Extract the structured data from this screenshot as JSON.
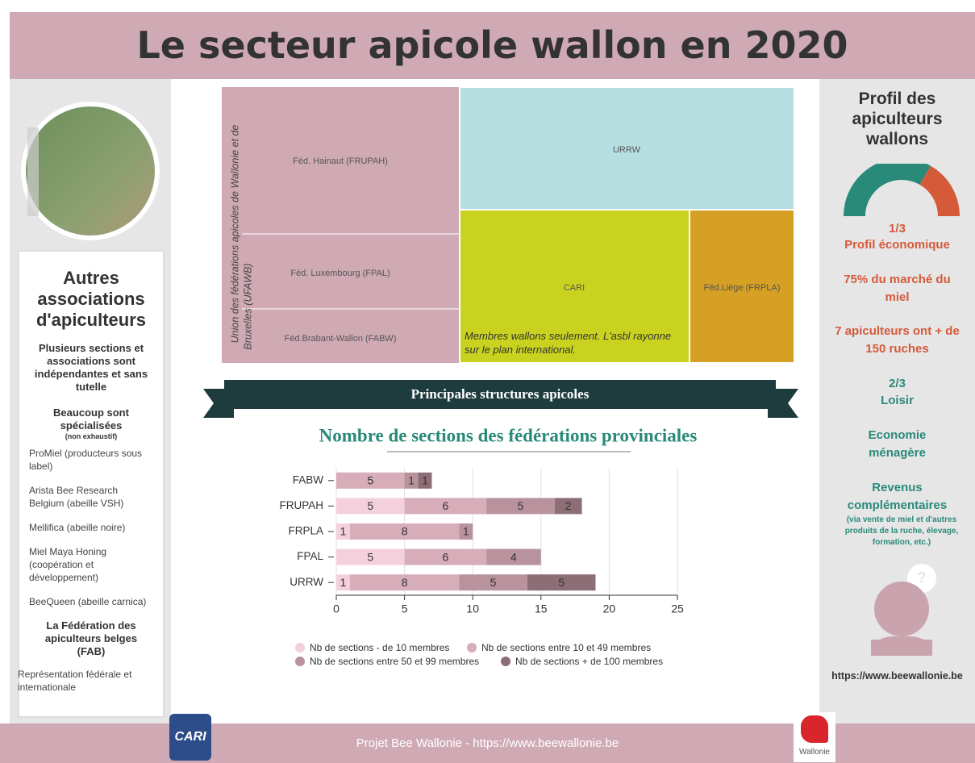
{
  "header": {
    "title": "Le secteur apicole wallon en 2020"
  },
  "left_panel": {
    "heading": "Autres associations d'apiculteurs",
    "intro": "Plusieurs sections et associations sont indépendantes et sans tutelle",
    "specialized_heading": "Beaucoup sont spécialisées",
    "specialized_note": "(non exhaustif)",
    "items": [
      "ProMiel (producteurs sous label)",
      "Arista Bee Research Belgium (abeille VSH)",
      "Mellifica (abeille noire)",
      "Miel Maya Honing (coopération et développement)",
      "BeeQueen (abeille carnica)"
    ],
    "fab_heading": "La Fédération des apiculteurs belges (FAB)",
    "fab_text": "Représentation fédérale et internationale"
  },
  "treemap": {
    "group_label_1": "Union des fédérations apicoles de Wallonie et de",
    "group_label_2": "Bruxelles (UFAWB)",
    "cells": [
      {
        "label": "Féd. Hainaut (FRUPAH)"
      },
      {
        "label": "Féd. Luxembourg (FPAL)"
      },
      {
        "label": "Féd.Brabant-Wallon (FABW)"
      },
      {
        "label": "URRW"
      },
      {
        "label": "CARI"
      },
      {
        "label": "Féd.Liège (FRPLA)"
      }
    ],
    "note": "Membres wallons seulement. L'asbl rayonne sur le plan international.",
    "banner": "Principales structures apicoles"
  },
  "chart_data": {
    "type": "stacked_bar_horizontal",
    "title": "Nombre de sections des fédérations provinciales",
    "categories": [
      "FABW",
      "FRUPAH",
      "FRPLA",
      "FPAL",
      "URRW"
    ],
    "series": [
      {
        "name": "Nb de sections - de 10 membres",
        "color": "#f4d0dc",
        "values": [
          null,
          5,
          1,
          5,
          1
        ]
      },
      {
        "name": "Nb de sections entre 10 et 49 membres",
        "color": "#d6adb9",
        "values": [
          5,
          6,
          8,
          6,
          8
        ]
      },
      {
        "name": "Nb de sections entre 50 et 99 membres",
        "color": "#b8939d",
        "values": [
          1,
          5,
          1,
          4,
          5
        ]
      },
      {
        "name": "Nb de sections + de 100 membres",
        "color": "#8d6e76",
        "values": [
          1,
          2,
          null,
          null,
          5
        ]
      }
    ],
    "xlim": [
      0,
      25
    ],
    "xticks": [
      0,
      5,
      10,
      15,
      20,
      25
    ],
    "grid": true
  },
  "right_panel": {
    "title": "Profil des apiculteurs wallons",
    "share_economic": "1/3",
    "economic": "Profil économique",
    "market": "75% du marché du miel",
    "hives": "7 apiculteurs ont + de 150 ruches",
    "share_leisure": "2/3",
    "leisure": "Loisir",
    "household": "Economie ménagère",
    "income": "Revenus complémentaires",
    "income_note": "(via vente de miel et d'autres produits de la ruche, élevage, formation, etc.)",
    "icon": "?",
    "url": "https://www.beewallonie.be"
  },
  "footer": {
    "text": "Projet Bee Wallonie - https://www.beewallonie.be",
    "logo_left": "CARI",
    "logo_right": "Wallonie"
  }
}
